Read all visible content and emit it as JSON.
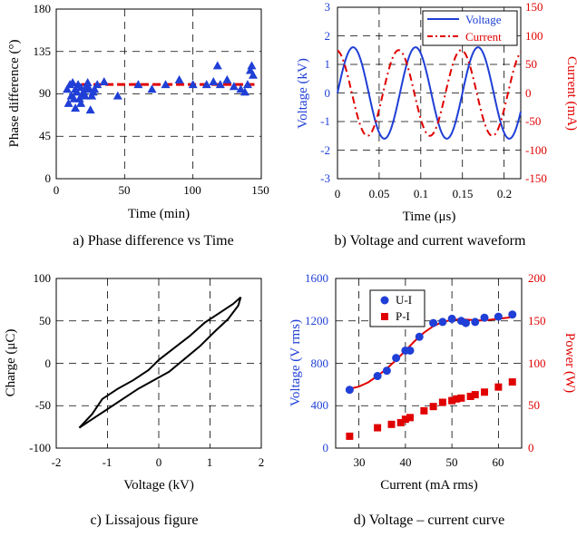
{
  "colors": {
    "blue": "#1f3fd6",
    "red": "#e00000",
    "black": "#000000",
    "grid": "#000000"
  },
  "chart_data": [
    {
      "id": "a",
      "type": "scatter",
      "title": "a) Phase difference vs Time",
      "xlabel": "Time (min)",
      "ylabel": "Phase difference (°)",
      "xlim": [
        0,
        150
      ],
      "ylim": [
        0,
        180
      ],
      "xticks": [
        "0",
        "50",
        "100",
        "150"
      ],
      "yticks": [
        "0",
        "45",
        "90",
        "135",
        "180"
      ],
      "reference_line": 100,
      "series": [
        {
          "name": "phase",
          "marker": "triangle",
          "x": [
            8,
            9,
            10,
            11,
            12,
            13,
            14,
            14,
            15,
            16,
            17,
            18,
            18,
            19,
            20,
            21,
            22,
            22,
            23,
            24,
            25,
            26,
            27,
            28,
            30,
            35,
            45,
            60,
            70,
            80,
            90,
            100,
            110,
            115,
            118,
            120,
            125,
            130,
            135,
            138,
            140,
            142,
            143,
            144
          ],
          "y": [
            95,
            80,
            100,
            88,
            102,
            85,
            95,
            75,
            92,
            100,
            85,
            97,
            80,
            90,
            92,
            88,
            95,
            98,
            102,
            96,
            73,
            88,
            92,
            95,
            100,
            103,
            88,
            100,
            95,
            100,
            105,
            100,
            100,
            103,
            120,
            100,
            105,
            98,
            95,
            92,
            100,
            115,
            120,
            110
          ]
        }
      ]
    },
    {
      "id": "b",
      "type": "line",
      "title": "b) Voltage and current waveform",
      "xlabel": "Time (μs)",
      "ylabel_left": "Voltage (kV)",
      "ylabel_right": "Current (mA)",
      "xlim": [
        0,
        0.22
      ],
      "ylim_left": [
        -3,
        3
      ],
      "ylim_right": [
        -150,
        150
      ],
      "xticks": [
        "0",
        "0.05",
        "0.1",
        "0.15",
        "0.2"
      ],
      "yticks_left": [
        "-3",
        "-2",
        "-1",
        "0",
        "1",
        "2",
        "3"
      ],
      "yticks_right": [
        "-150",
        "-100",
        "-50",
        "0",
        "50",
        "100",
        "150"
      ],
      "legend": [
        "Voltage",
        "Current"
      ],
      "series": [
        {
          "name": "Voltage",
          "axis": "left",
          "amplitude": 1.6,
          "period": 0.075,
          "phase": 0.0
        },
        {
          "name": "Current",
          "axis": "right",
          "amplitude": 75,
          "period": 0.075,
          "phase": 1.7
        }
      ]
    },
    {
      "id": "c",
      "type": "line",
      "title": "c) Lissajous figure",
      "xlabel": "Voltage (kV)",
      "ylabel": "Charge (μC)",
      "xlim": [
        -2,
        2
      ],
      "ylim": [
        -100,
        100
      ],
      "xticks": [
        "-2",
        "-1",
        "0",
        "1",
        "2"
      ],
      "yticks": [
        "-100",
        "-50",
        "0",
        "50",
        "100"
      ],
      "series": [
        {
          "name": "upper",
          "x": [
            -1.55,
            -1.3,
            -1.1,
            -0.8,
            -0.5,
            -0.2,
            0,
            0.3,
            0.6,
            0.9,
            1.2,
            1.45,
            1.6
          ],
          "y": [
            -76,
            -60,
            -42,
            -30,
            -20,
            -8,
            4,
            18,
            32,
            48,
            60,
            70,
            78
          ]
        },
        {
          "name": "lower",
          "x": [
            -1.55,
            -1.3,
            -1.0,
            -0.7,
            -0.4,
            -0.1,
            0.2,
            0.5,
            0.8,
            1.1,
            1.35,
            1.55,
            1.6
          ],
          "y": [
            -76,
            -66,
            -54,
            -42,
            -30,
            -20,
            -10,
            5,
            20,
            38,
            52,
            68,
            78
          ]
        }
      ]
    },
    {
      "id": "d",
      "type": "scatter",
      "title": "d) Voltage – current curve",
      "xlabel": "Current (mA rms)",
      "ylabel_left": "Voltage (V rms)",
      "ylabel_right": "Power (W)",
      "xlim": [
        25,
        65
      ],
      "ylim_left": [
        0,
        1600
      ],
      "ylim_right": [
        0,
        200
      ],
      "xticks": [
        "30",
        "40",
        "50",
        "60"
      ],
      "yticks_left": [
        "0",
        "400",
        "800",
        "1200",
        "1600"
      ],
      "yticks_right": [
        "0",
        "50",
        "100",
        "150",
        "200"
      ],
      "legend": [
        "U-I",
        "P-I"
      ],
      "series": [
        {
          "name": "U-I",
          "axis": "left",
          "marker": "circle",
          "x": [
            28,
            34,
            36,
            38,
            40,
            41,
            43,
            46,
            48,
            50,
            52,
            53,
            55,
            57,
            60,
            63
          ],
          "y": [
            550,
            680,
            730,
            850,
            920,
            920,
            1050,
            1180,
            1190,
            1220,
            1200,
            1180,
            1190,
            1230,
            1240,
            1260
          ]
        },
        {
          "name": "P-I",
          "axis": "right",
          "marker": "square",
          "x": [
            28,
            34,
            37,
            39,
            40,
            41,
            44,
            46,
            48,
            50,
            51,
            52,
            54,
            55,
            57,
            60,
            63
          ],
          "y": [
            14,
            24,
            28,
            30,
            34,
            36,
            44,
            49,
            54,
            56,
            58,
            59,
            61,
            63,
            66,
            72,
            78
          ]
        },
        {
          "name": "U-I fit",
          "axis": "left",
          "marker": "none",
          "x": [
            28,
            30,
            32,
            34,
            36,
            38,
            40,
            42,
            44,
            46,
            48,
            50,
            52,
            54,
            56,
            58,
            60,
            62,
            63
          ],
          "y": [
            560,
            580,
            620,
            680,
            750,
            830,
            920,
            1010,
            1090,
            1150,
            1190,
            1210,
            1215,
            1210,
            1205,
            1210,
            1220,
            1230,
            1240
          ]
        }
      ]
    }
  ]
}
